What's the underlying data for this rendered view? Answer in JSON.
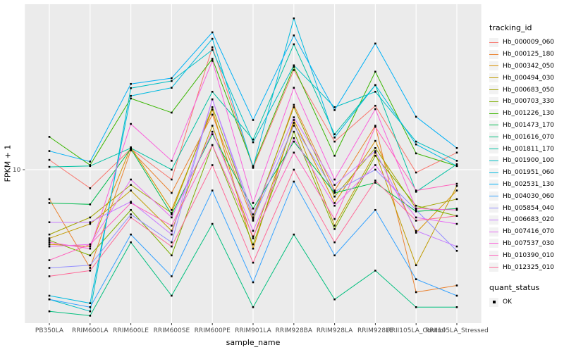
{
  "figure": {
    "background": "#FFFFFF",
    "panel_bg": "#EBEBEB",
    "grid_color": "#FFFFFF",
    "axis_text_color": "#4D4D4D",
    "tick_color": "#333333",
    "title_color": "#000000",
    "point_color": "#000000",
    "legend_key_bg": "#F2F2F2"
  },
  "chart_data": {
    "type": "line",
    "title": "",
    "xlabel": "sample_name",
    "ylabel": "FPKM + 1",
    "y_scale": "log10",
    "grid": "major-only",
    "legend_position": "right",
    "y_ticks": [
      {
        "value": 10,
        "label": "10"
      }
    ],
    "ylim": [
      1.9,
      58
    ],
    "categories": [
      "PB350LA",
      "RRIM600LA",
      "RRIM600LE",
      "RRIM600SE",
      "RRIM600PE",
      "RRIM901LA",
      "RRIM928BA",
      "RRIM928LA",
      "RRIM928LE",
      "RRII105LA_Control",
      "RRII105LA_Stressed"
    ],
    "point_shape": "filled-square",
    "legend": {
      "color_title": "tracking_id",
      "shape_title": "quant_status",
      "shape_items": [
        {
          "label": "OK"
        }
      ]
    },
    "series": [
      {
        "name": "Hb_000009_060",
        "color": "#F8766D",
        "values": [
          11.1,
          8.2,
          12.5,
          9.0,
          37.0,
          10.2,
          29.0,
          13.5,
          19.8,
          9.7,
          12.0
        ]
      },
      {
        "name": "Hb_000125_180",
        "color": "#EA8331",
        "values": [
          7.3,
          3.5,
          12.3,
          7.8,
          18.0,
          5.8,
          20.0,
          8.0,
          16.0,
          2.7,
          2.9
        ]
      },
      {
        "name": "Hb_000342_050",
        "color": "#D89000",
        "values": [
          4.5,
          4.4,
          12.7,
          6.5,
          19.0,
          4.3,
          17.0,
          7.0,
          13.6,
          5.1,
          8.0
        ]
      },
      {
        "name": "Hb_000494_030",
        "color": "#C09B00",
        "values": [
          4.8,
          5.6,
          8.0,
          5.2,
          16.0,
          4.8,
          16.5,
          5.5,
          12.0,
          3.6,
          8.4
        ]
      },
      {
        "name": "Hb_000683_050",
        "color": "#A3A500",
        "values": [
          5.0,
          6.0,
          8.5,
          6.3,
          19.5,
          6.0,
          19.5,
          7.5,
          12.6,
          6.6,
          7.3
        ]
      },
      {
        "name": "Hb_000703_330",
        "color": "#7CAE00",
        "values": [
          4.7,
          4.0,
          6.5,
          4.0,
          13.0,
          4.5,
          15.0,
          5.3,
          11.6,
          6.8,
          6.1
        ]
      },
      {
        "name": "Hb_001226_130",
        "color": "#39B600",
        "values": [
          14.2,
          10.5,
          21.4,
          18.4,
          32.7,
          10.4,
          30.0,
          11.6,
          28.5,
          11.9,
          10.4
        ]
      },
      {
        "name": "Hb_001473_170",
        "color": "#00BB4E",
        "values": [
          7.0,
          6.9,
          12.5,
          6.2,
          14.6,
          6.6,
          13.5,
          7.8,
          8.7,
          6.4,
          6.6
        ]
      },
      {
        "name": "Hb_001616_070",
        "color": "#00BF7D",
        "values": [
          2.2,
          2.1,
          4.6,
          2.6,
          5.6,
          2.3,
          5.0,
          2.5,
          3.4,
          2.3,
          2.3
        ]
      },
      {
        "name": "Hb_001811_170",
        "color": "#00C1A3",
        "values": [
          10.3,
          10.4,
          12.6,
          10.0,
          23.0,
          13.8,
          38.2,
          14.6,
          24.7,
          7.9,
          10.6
        ]
      },
      {
        "name": "Hb_001900_100",
        "color": "#00BFC4",
        "values": [
          2.5,
          2.2,
          23.9,
          25.8,
          36.0,
          13.4,
          30.5,
          19.5,
          23.0,
          13.5,
          11.0
        ]
      },
      {
        "name": "Hb_001951_060",
        "color": "#00BAE0",
        "values": [
          2.6,
          2.4,
          22.0,
          24.0,
          40.5,
          10.3,
          50.4,
          14.1,
          24.7,
          13.1,
          10.4
        ]
      },
      {
        "name": "Hb_002531_130",
        "color": "#00B0F6",
        "values": [
          12.2,
          10.9,
          25.0,
          26.6,
          43.4,
          17.0,
          42.0,
          18.9,
          38.5,
          17.6,
          12.6
        ]
      },
      {
        "name": "Hb_004030_060",
        "color": "#35A2FF",
        "values": [
          2.5,
          2.3,
          5.0,
          3.2,
          8.0,
          3.0,
          8.8,
          4.0,
          6.5,
          3.1,
          2.6
        ]
      },
      {
        "name": "Hb_005854_040",
        "color": "#9590FF",
        "values": [
          3.5,
          3.6,
          6.2,
          4.6,
          21.2,
          5.9,
          16.0,
          7.9,
          10.0,
          6.5,
          4.2
        ]
      },
      {
        "name": "Hb_006683_020",
        "color": "#C77CFF",
        "values": [
          5.7,
          5.7,
          7.1,
          5.0,
          21.2,
          6.2,
          17.5,
          8.5,
          12.2,
          5.2,
          4.4
        ]
      },
      {
        "name": "Hb_007416_070",
        "color": "#E76BF3",
        "values": [
          4.4,
          4.5,
          9.0,
          6.0,
          15.0,
          5.2,
          14.0,
          6.8,
          10.5,
          6.0,
          5.6
        ]
      },
      {
        "name": "Hb_007537_030",
        "color": "#FA62DB",
        "values": [
          4.6,
          4.3,
          16.3,
          11.0,
          32.0,
          7.0,
          24.0,
          9.0,
          19.1,
          6.6,
          6.5
        ]
      },
      {
        "name": "Hb_010390_010",
        "color": "#FF62BC",
        "values": [
          3.8,
          4.5,
          7.0,
          5.5,
          13.0,
          4.9,
          12.0,
          5.9,
          15.8,
          8.0,
          8.6
        ]
      },
      {
        "name": "Hb_012325_010",
        "color": "#FF6A98",
        "values": [
          3.2,
          3.4,
          6.0,
          4.4,
          10.5,
          3.7,
          10.0,
          4.6,
          8.9,
          5.8,
          6.1
        ]
      }
    ]
  }
}
